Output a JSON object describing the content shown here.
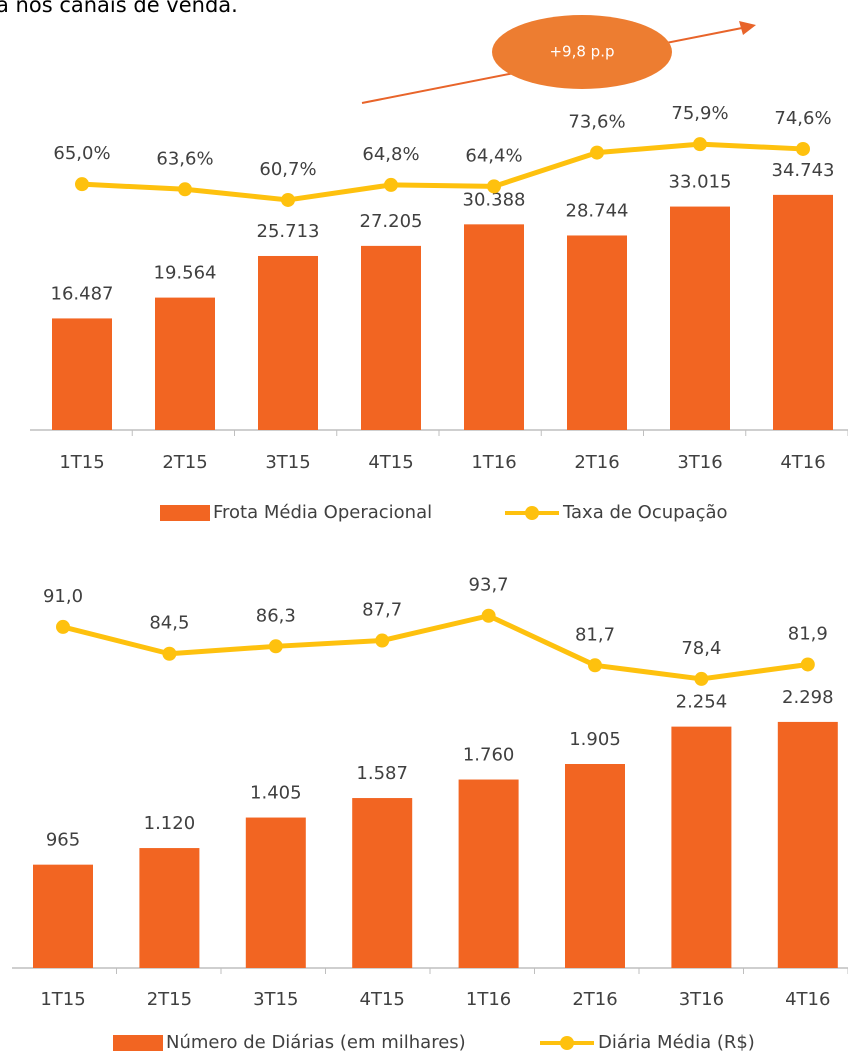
{
  "header_text": "a nos canais de venda.",
  "chart_data": [
    {
      "type": "combo",
      "categories": [
        "1T15",
        "2T15",
        "3T15",
        "4T15",
        "1T16",
        "2T16",
        "3T16",
        "4T16"
      ],
      "series": [
        {
          "name": "Frota Média Operacional",
          "type": "bar",
          "color": "#f26522",
          "values": [
            16487,
            19564,
            25713,
            27205,
            30388,
            28744,
            33015,
            34743
          ],
          "value_labels": [
            "16.487",
            "19.564",
            "25.713",
            "27.205",
            "30.388",
            "28.744",
            "33.015",
            "34.743"
          ]
        },
        {
          "name": "Taxa de Ocupação",
          "type": "line",
          "axis": "y2",
          "color": "#fec10e",
          "values": [
            65.0,
            63.6,
            60.7,
            64.8,
            64.4,
            73.6,
            75.9,
            74.6
          ],
          "value_labels": [
            "65,0%",
            "63,6%",
            "60,7%",
            "64,8%",
            "64,4%",
            "73,6%",
            "75,9%",
            "74,6%"
          ]
        }
      ],
      "ylim": [
        0,
        49500
      ],
      "y2lim": [
        -2,
        89.3
      ],
      "annotation": "+9,8 p.p"
    },
    {
      "type": "combo",
      "categories": [
        "1T15",
        "2T15",
        "3T15",
        "4T15",
        "1T16",
        "2T16",
        "3T16",
        "4T16"
      ],
      "series": [
        {
          "name": "Número de Diárias (em milhares)",
          "type": "bar",
          "color": "#f26522",
          "values": [
            965,
            1120,
            1405,
            1587,
            1760,
            1905,
            2254,
            2298
          ],
          "value_labels": [
            "965",
            "1.120",
            "1.405",
            "1.587",
            "1.760",
            "1.905",
            "2.254",
            "2.298"
          ]
        },
        {
          "name": "Diária Média (R$)",
          "type": "line",
          "axis": "y2",
          "color": "#fec10e",
          "values": [
            91.0,
            84.5,
            86.3,
            87.7,
            93.7,
            81.7,
            78.4,
            81.9
          ],
          "value_labels": [
            "91,0",
            "84,5",
            "86,3",
            "87,7",
            "93,7",
            "81,7",
            "78,4",
            "81,9"
          ]
        }
      ],
      "ylim": [
        0,
        3810
      ],
      "y2lim": [
        8.4,
        107.2
      ]
    }
  ]
}
